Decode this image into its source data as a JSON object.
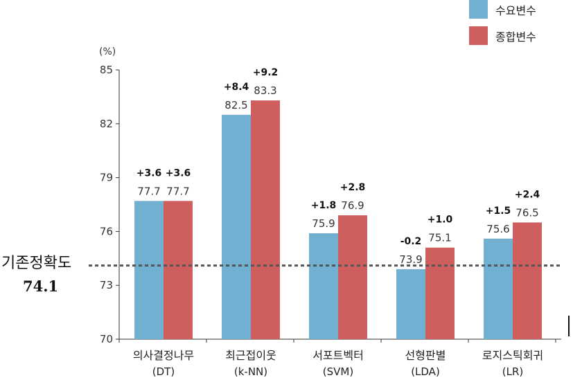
{
  "chart_data": {
    "type": "bar",
    "unit_label": "(%)",
    "categories": [
      {
        "name": "의사결정나무",
        "abbr": "(DT)"
      },
      {
        "name": "최근접이웃",
        "abbr": "(k-NN)"
      },
      {
        "name": "서포트벡터",
        "abbr": "(SVM)"
      },
      {
        "name": "선형판별",
        "abbr": "(LDA)"
      },
      {
        "name": "로지스틱회귀",
        "abbr": "(LR)"
      }
    ],
    "series": [
      {
        "name": "수요변수",
        "color": "#72b0d1",
        "values": [
          77.7,
          82.5,
          75.9,
          73.9,
          75.6
        ],
        "value_labels": [
          "77.7",
          "82.5",
          "75.9",
          "73.9",
          "75.6"
        ],
        "diff_labels": [
          "+3.6",
          "+8.4",
          "+1.8",
          "-0.2",
          "+1.5"
        ]
      },
      {
        "name": "종합변수",
        "color": "#cf5f5f",
        "values": [
          77.7,
          83.3,
          76.9,
          75.1,
          76.5
        ],
        "value_labels": [
          "77.7",
          "83.3",
          "76.9",
          "75.1",
          "76.5"
        ],
        "diff_labels": [
          "+3.6",
          "+9.2",
          "+2.8",
          "+1.0",
          "+2.4"
        ]
      }
    ],
    "ylim": [
      70,
      85
    ],
    "yticks": [
      "70",
      "73",
      "76",
      "79",
      "82",
      "85"
    ],
    "baseline": {
      "value": 74.1,
      "title": "기존정확도",
      "value_label": "74.1"
    },
    "legend_position": "top-right",
    "grid": false
  }
}
